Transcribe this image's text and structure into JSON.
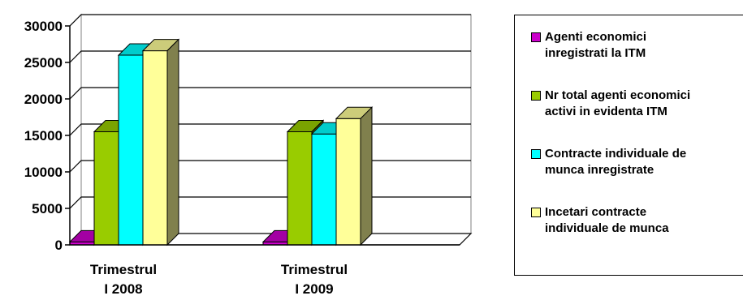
{
  "chart_data": {
    "type": "bar",
    "categories": [
      "Trimestrul I 2008",
      "Trimestrul I 2009"
    ],
    "category_lines": [
      [
        "Trimestrul",
        "I 2008"
      ],
      [
        "Trimestrul",
        "I 2009"
      ]
    ],
    "series": [
      {
        "name": "Agenti economici inregistrati la ITM",
        "values": [
          400,
          400
        ],
        "color": "#cc00cc"
      },
      {
        "name": "Nr total agenti economici activi in evidenta ITM",
        "values": [
          15500,
          15500
        ],
        "color": "#99cc00"
      },
      {
        "name": "Contracte individuale de munca inregistrate",
        "values": [
          26000,
          15200
        ],
        "color": "#00ffff"
      },
      {
        "name": "Incetari contracte individuale de munca",
        "values": [
          26600,
          17300
        ],
        "color": "#ffff99"
      }
    ],
    "yticks": [
      0,
      5000,
      10000,
      15000,
      20000,
      25000,
      30000
    ],
    "ylim": [
      0,
      30000
    ],
    "grid": true,
    "legend_position": "right",
    "three_d": true
  },
  "legend": {
    "items": [
      {
        "lines": [
          "Agenti economici",
          "inregistrati la ITM"
        ],
        "color": "#cc00cc"
      },
      {
        "lines": [
          "Nr total agenti economici",
          "activi in evidenta ITM"
        ],
        "color": "#99cc00"
      },
      {
        "lines": [
          "Contracte individuale de",
          "munca inregistrate"
        ],
        "color": "#00ffff"
      },
      {
        "lines": [
          "Incetari contracte",
          "individuale de munca"
        ],
        "color": "#ffff99"
      }
    ]
  }
}
